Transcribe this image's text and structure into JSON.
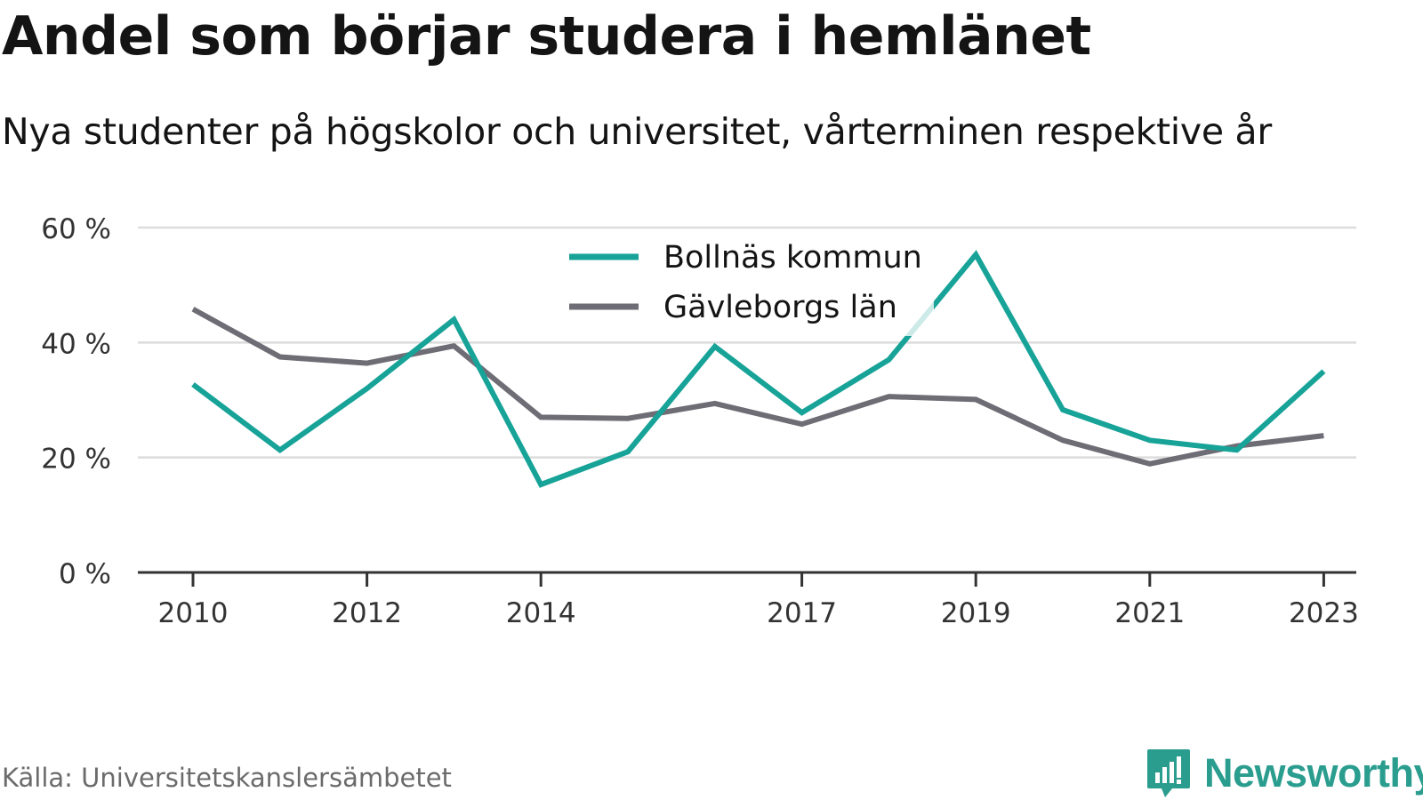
{
  "title": "Andel som börjar studera i hemlänet",
  "subtitle": "Nya studenter på högskolor och universitet, vårterminen respektive år",
  "source": "Källa: Universitetskanslersämbetet",
  "brand": {
    "name": "Newsworthy",
    "icon": "newsworthy-logo-icon",
    "color": "#2a9d8f"
  },
  "chart_data": {
    "type": "line",
    "x": [
      2010,
      2011,
      2012,
      2013,
      2014,
      2015,
      2016,
      2017,
      2018,
      2019,
      2020,
      2021,
      2022,
      2023
    ],
    "x_tick_labels": [
      "2010",
      "2012",
      "2014",
      "2017",
      "2019",
      "2021",
      "2023"
    ],
    "x_ticks": [
      2010,
      2012,
      2014,
      2017,
      2019,
      2021,
      2023
    ],
    "y_ticks": [
      {
        "value": 0,
        "label": "0 %"
      },
      {
        "value": 20,
        "label": "20 %"
      },
      {
        "value": 40,
        "label": "40 %"
      },
      {
        "value": 60,
        "label": "60 %"
      }
    ],
    "ylim": [
      0,
      60
    ],
    "grid": true,
    "legend_position": "top-center",
    "series": [
      {
        "name": "Bollnäs kommun",
        "color": "#17a398",
        "values": [
          32.7,
          21.3,
          32.0,
          44.0,
          15.3,
          21.0,
          39.3,
          27.8,
          37.0,
          55.3,
          28.3,
          23.0,
          21.3,
          35.0
        ]
      },
      {
        "name": "Gävleborgs län",
        "color": "#6e6d75",
        "values": [
          45.8,
          37.5,
          36.4,
          39.4,
          27.0,
          26.8,
          29.4,
          25.8,
          30.6,
          30.1,
          23.0,
          18.9,
          22.0,
          23.8
        ]
      }
    ]
  }
}
